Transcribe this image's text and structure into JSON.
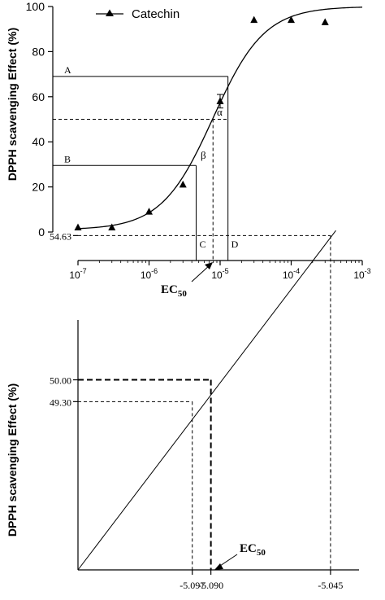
{
  "chart_data": [
    {
      "type": "scatter",
      "xscale": "log",
      "xlim": [
        1e-07,
        0.001
      ],
      "ylim": [
        0,
        100
      ],
      "ylabel": "DPPH scavenging Effect (%)",
      "xticks": [
        {
          "base": "10",
          "exp": "-7",
          "value": 1e-07
        },
        {
          "base": "10",
          "exp": "-6",
          "value": 1e-06
        },
        {
          "base": "10",
          "exp": "-5",
          "value": 1e-05
        },
        {
          "base": "10",
          "exp": "-4",
          "value": 0.0001
        },
        {
          "base": "10",
          "exp": "-3",
          "value": 0.001
        }
      ],
      "yticks": [
        "0",
        "20",
        "40",
        "60",
        "80",
        "100"
      ],
      "legend": {
        "label": "Catechin",
        "position": "top-left"
      },
      "series": [
        {
          "name": "Catechin",
          "marker": "triangle",
          "x": [
            1e-07,
            3e-07,
            1e-06,
            3e-06,
            1e-05,
            3e-05,
            0.0001,
            0.0003
          ],
          "y": [
            2,
            2,
            9,
            21,
            58,
            94,
            94,
            93
          ]
        }
      ],
      "fit_curve": {
        "bottom": 1,
        "top": 100,
        "log_ec50": -5.1,
        "hill": 1.2
      },
      "reference_lines": [
        {
          "label": "A",
          "y": 69,
          "x_end": 1.29e-05
        },
        {
          "label": "B",
          "y": 29.5,
          "x_end": 4.6e-06
        },
        {
          "y": 50,
          "x_end": 1.29e-05,
          "dashed": true
        },
        {
          "label": "C",
          "x": 4.6e-06,
          "y_top": 29.5
        },
        {
          "label": "D",
          "x": 1.29e-05,
          "y_top": 69
        },
        {
          "x": 7.94e-06,
          "y_top": 50,
          "dashed": true
        }
      ],
      "point_labels": {
        "alpha": "α",
        "beta": "β"
      },
      "annotation": {
        "text": "EC",
        "sub": "50"
      }
    },
    {
      "type": "line",
      "ylabel": "DPPH scavenging Effect (%)",
      "yticks": [
        "49.30",
        "50.00",
        "54.63"
      ],
      "xticks": [
        "-5.097",
        "-5.090",
        "-5.045"
      ],
      "line_points": {
        "x": [
          -5.097,
          -5.09,
          -5.045
        ],
        "y": [
          49.3,
          50.0,
          54.63
        ]
      },
      "annotation": {
        "text": "EC",
        "sub": "50"
      }
    }
  ],
  "colors": {
    "ink": "#000000",
    "background": "#ffffff"
  }
}
